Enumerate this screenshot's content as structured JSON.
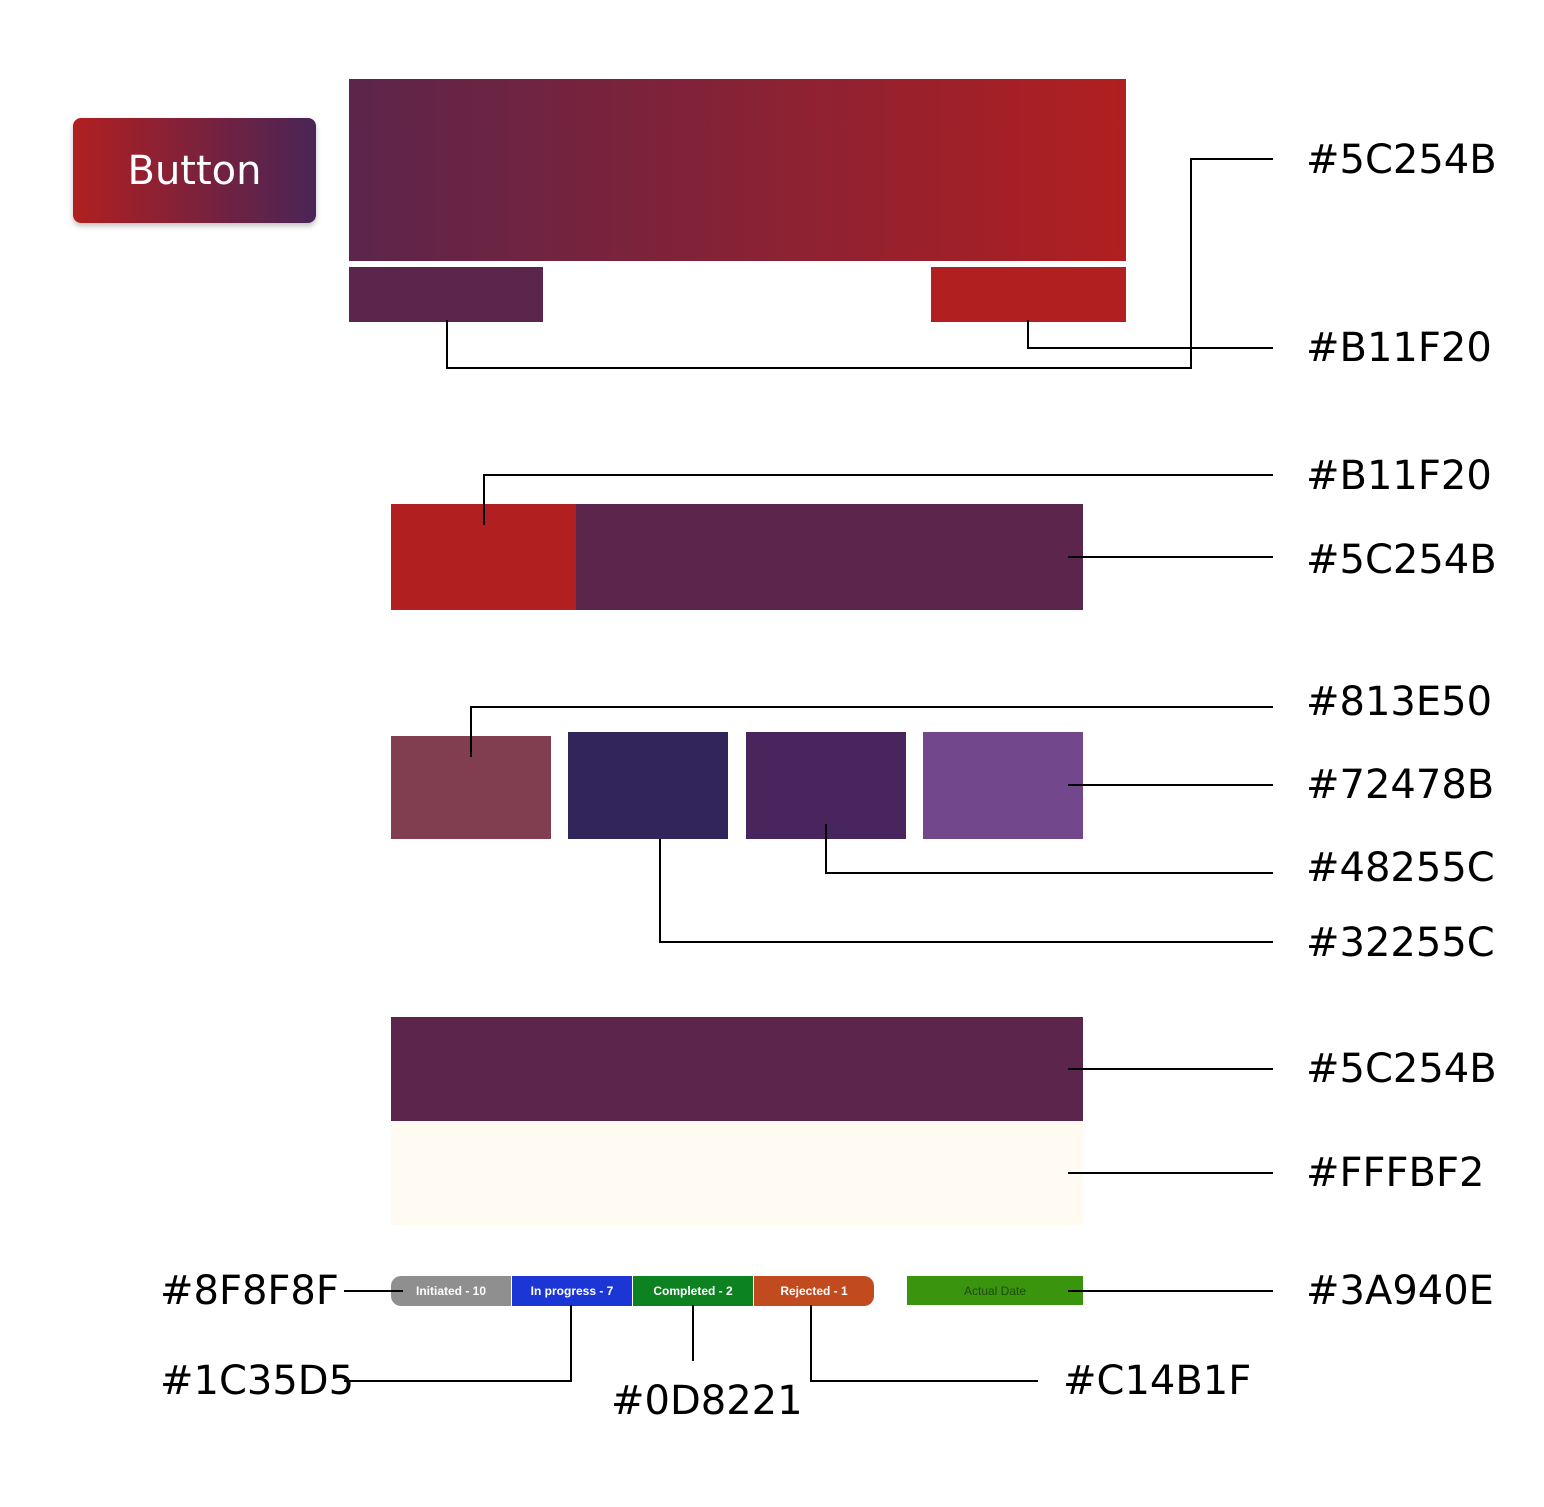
{
  "button": {
    "label": "Button"
  },
  "colors": {
    "c5C254B": "#5C254B",
    "cB11F20": "#B11F20",
    "c813E50": "#813E50",
    "c72478B": "#72478B",
    "c48255C": "#48255C",
    "c32255C": "#32255C",
    "cFFFBF2": "#FFFBF2",
    "c8F8F8F": "#8F8F8F",
    "c1C35D5": "#1C35D5",
    "c0D8221": "#0D8221",
    "cC14B1F": "#C14B1F",
    "c3A940E": "#3A940E"
  },
  "labels": {
    "gradient_top": "#5C254B",
    "gradient_bottom": "#B11F20",
    "split_red": "#B11F20",
    "split_purple": "#5C254B",
    "sq_813E50": "#813E50",
    "sq_72478B": "#72478B",
    "sq_48255C": "#48255C",
    "sq_32255C": "#32255C",
    "header_5C254B": "#5C254B",
    "body_FFFBF2": "#FFFBF2",
    "status_grey": "#8F8F8F",
    "status_blue": "#1C35D5",
    "status_green": "#0D8221",
    "status_orange": "#C14B1F",
    "actual_green": "#3A940E"
  },
  "status": {
    "initiated": "Initiated - 10",
    "in_progress": "In progress - 7",
    "completed": "Completed - 2",
    "rejected": "Rejected - 1",
    "actual_date": "Actual Date"
  }
}
